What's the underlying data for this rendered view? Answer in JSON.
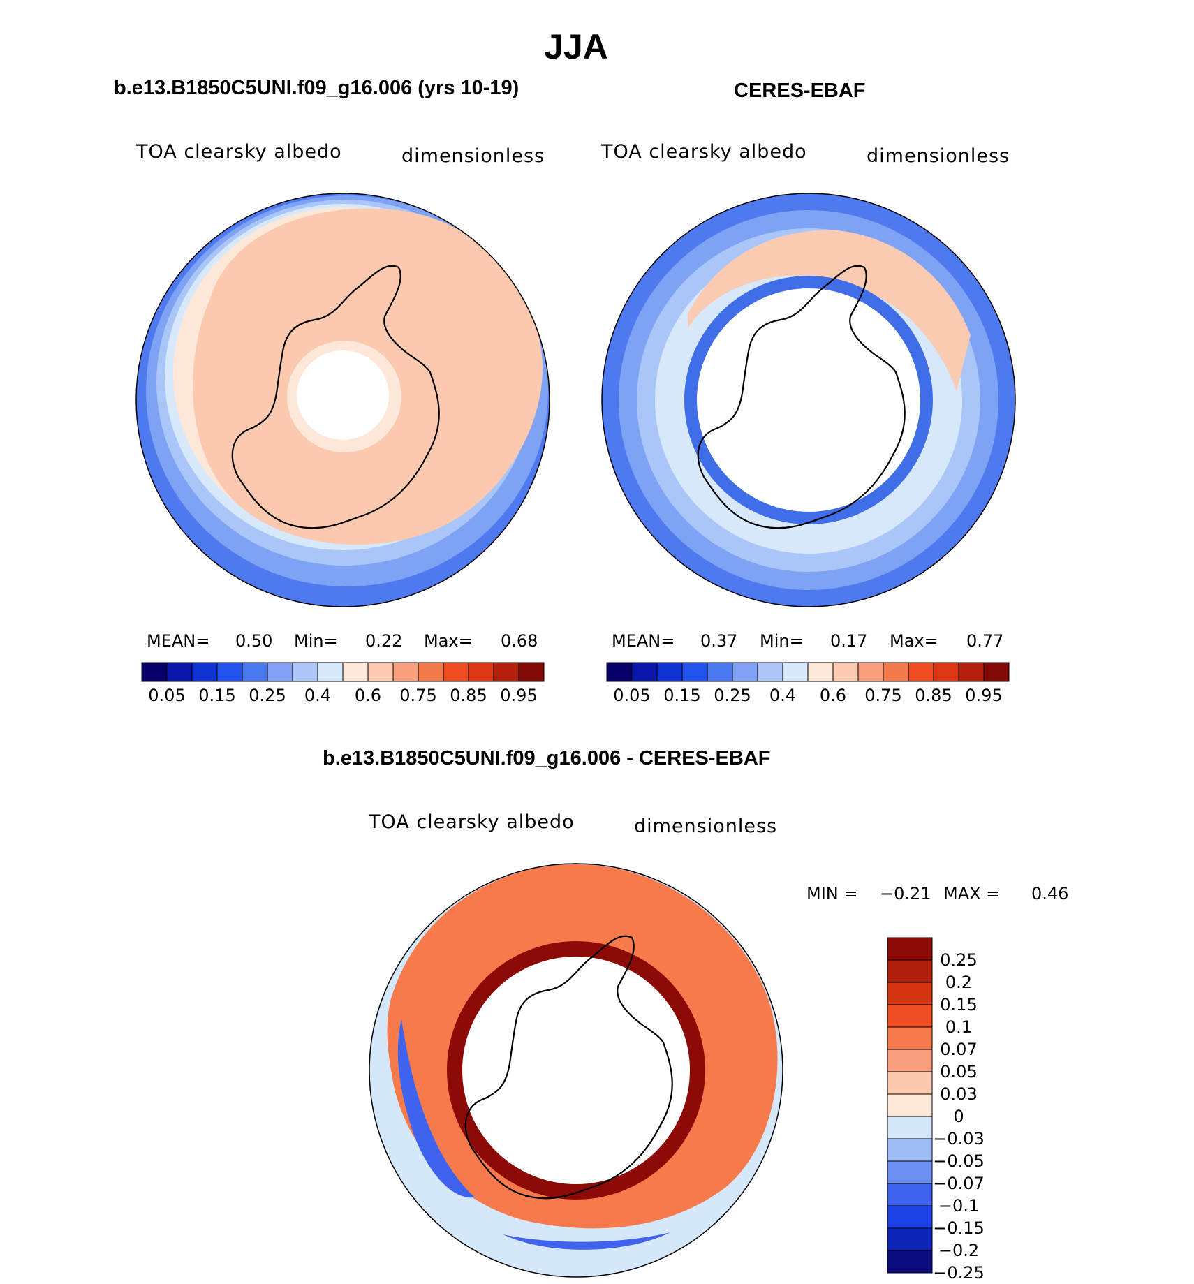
{
  "title": "JJA",
  "colors": {
    "scale": [
      "#07006b",
      "#0a16a8",
      "#0e33d2",
      "#2353ee",
      "#4a78f0",
      "#7fa0f3",
      "#adc6f8",
      "#d8e8fb",
      "#fde7d8",
      "#fbcab2",
      "#f8a07e",
      "#f57a4b",
      "#f04c22",
      "#dd3612",
      "#b3200c",
      "#820a06"
    ],
    "diff": [
      "#0b0a7e",
      "#0d23ba",
      "#1d41e4",
      "#3f63ee",
      "#6c8ff2",
      "#a0bcf7",
      "#d5e7fb",
      "#fde7d8",
      "#fbc9ae",
      "#f8a07d",
      "#f67a4c",
      "#ef4d24",
      "#d43513",
      "#b01f0c",
      "#8c0b07"
    ]
  },
  "panels": [
    {
      "title": "b.e13.B1850C5UNI.f09_g16.006 (yrs 10-19)",
      "variable": "TOA clearsky albedo",
      "units": "dimensionless",
      "mean_label": "MEAN=",
      "mean": "0.50",
      "min_label": "Min=",
      "min": "0.22",
      "max_label": "Max=",
      "max": "0.68"
    },
    {
      "title": "CERES-EBAF",
      "variable": "TOA clearsky albedo",
      "units": "dimensionless",
      "mean_label": "MEAN=",
      "mean": "0.37",
      "min_label": "Min=",
      "min": "0.17",
      "max_label": "Max=",
      "max": "0.77"
    },
    {
      "title": "b.e13.B1850C5UNI.f09_g16.006 - CERES-EBAF",
      "variable": "TOA clearsky albedo",
      "units": "dimensionless",
      "min_label": "MIN =",
      "min": "−0.21",
      "max_label": "MAX =",
      "max": "0.46"
    }
  ],
  "chart_data": [
    {
      "type": "heatmap",
      "projection": "south polar stereographic",
      "title": "b.e13.B1850C5UNI.f09_g16.006 (yrs 10-19)",
      "variable": "TOA clearsky albedo",
      "units": "dimensionless",
      "stats": {
        "mean": 0.5,
        "min": 0.22,
        "max": 0.68
      },
      "colorbar": {
        "orientation": "horizontal",
        "levels": [
          0.05,
          0.1,
          0.15,
          0.2,
          0.25,
          0.3,
          0.4,
          0.5,
          0.6,
          0.7,
          0.75,
          0.8,
          0.85,
          0.9,
          0.95
        ],
        "tick_labels": [
          "0.05",
          "0.15",
          "0.25",
          "0.4",
          "0.6",
          "0.75",
          "0.85",
          "0.95"
        ]
      }
    },
    {
      "type": "heatmap",
      "projection": "south polar stereographic",
      "title": "CERES-EBAF",
      "variable": "TOA clearsky albedo",
      "units": "dimensionless",
      "stats": {
        "mean": 0.37,
        "min": 0.17,
        "max": 0.77
      },
      "colorbar": {
        "orientation": "horizontal",
        "levels": [
          0.05,
          0.1,
          0.15,
          0.2,
          0.25,
          0.3,
          0.4,
          0.5,
          0.6,
          0.7,
          0.75,
          0.8,
          0.85,
          0.9,
          0.95
        ],
        "tick_labels": [
          "0.05",
          "0.15",
          "0.25",
          "0.4",
          "0.6",
          "0.75",
          "0.85",
          "0.95"
        ]
      }
    },
    {
      "type": "heatmap",
      "projection": "south polar stereographic",
      "title": "b.e13.B1850C5UNI.f09_g16.006 - CERES-EBAF",
      "variable": "TOA clearsky albedo",
      "units": "dimensionless",
      "stats": {
        "min": -0.21,
        "max": 0.46
      },
      "colorbar": {
        "orientation": "vertical",
        "tick_labels": [
          "0.25",
          "0.2",
          "0.15",
          "0.1",
          "0.07",
          "0.05",
          "0.03",
          "0",
          "−0.03",
          "−0.05",
          "−0.07",
          "−0.1",
          "−0.15",
          "−0.2",
          "−0.25"
        ]
      }
    }
  ]
}
